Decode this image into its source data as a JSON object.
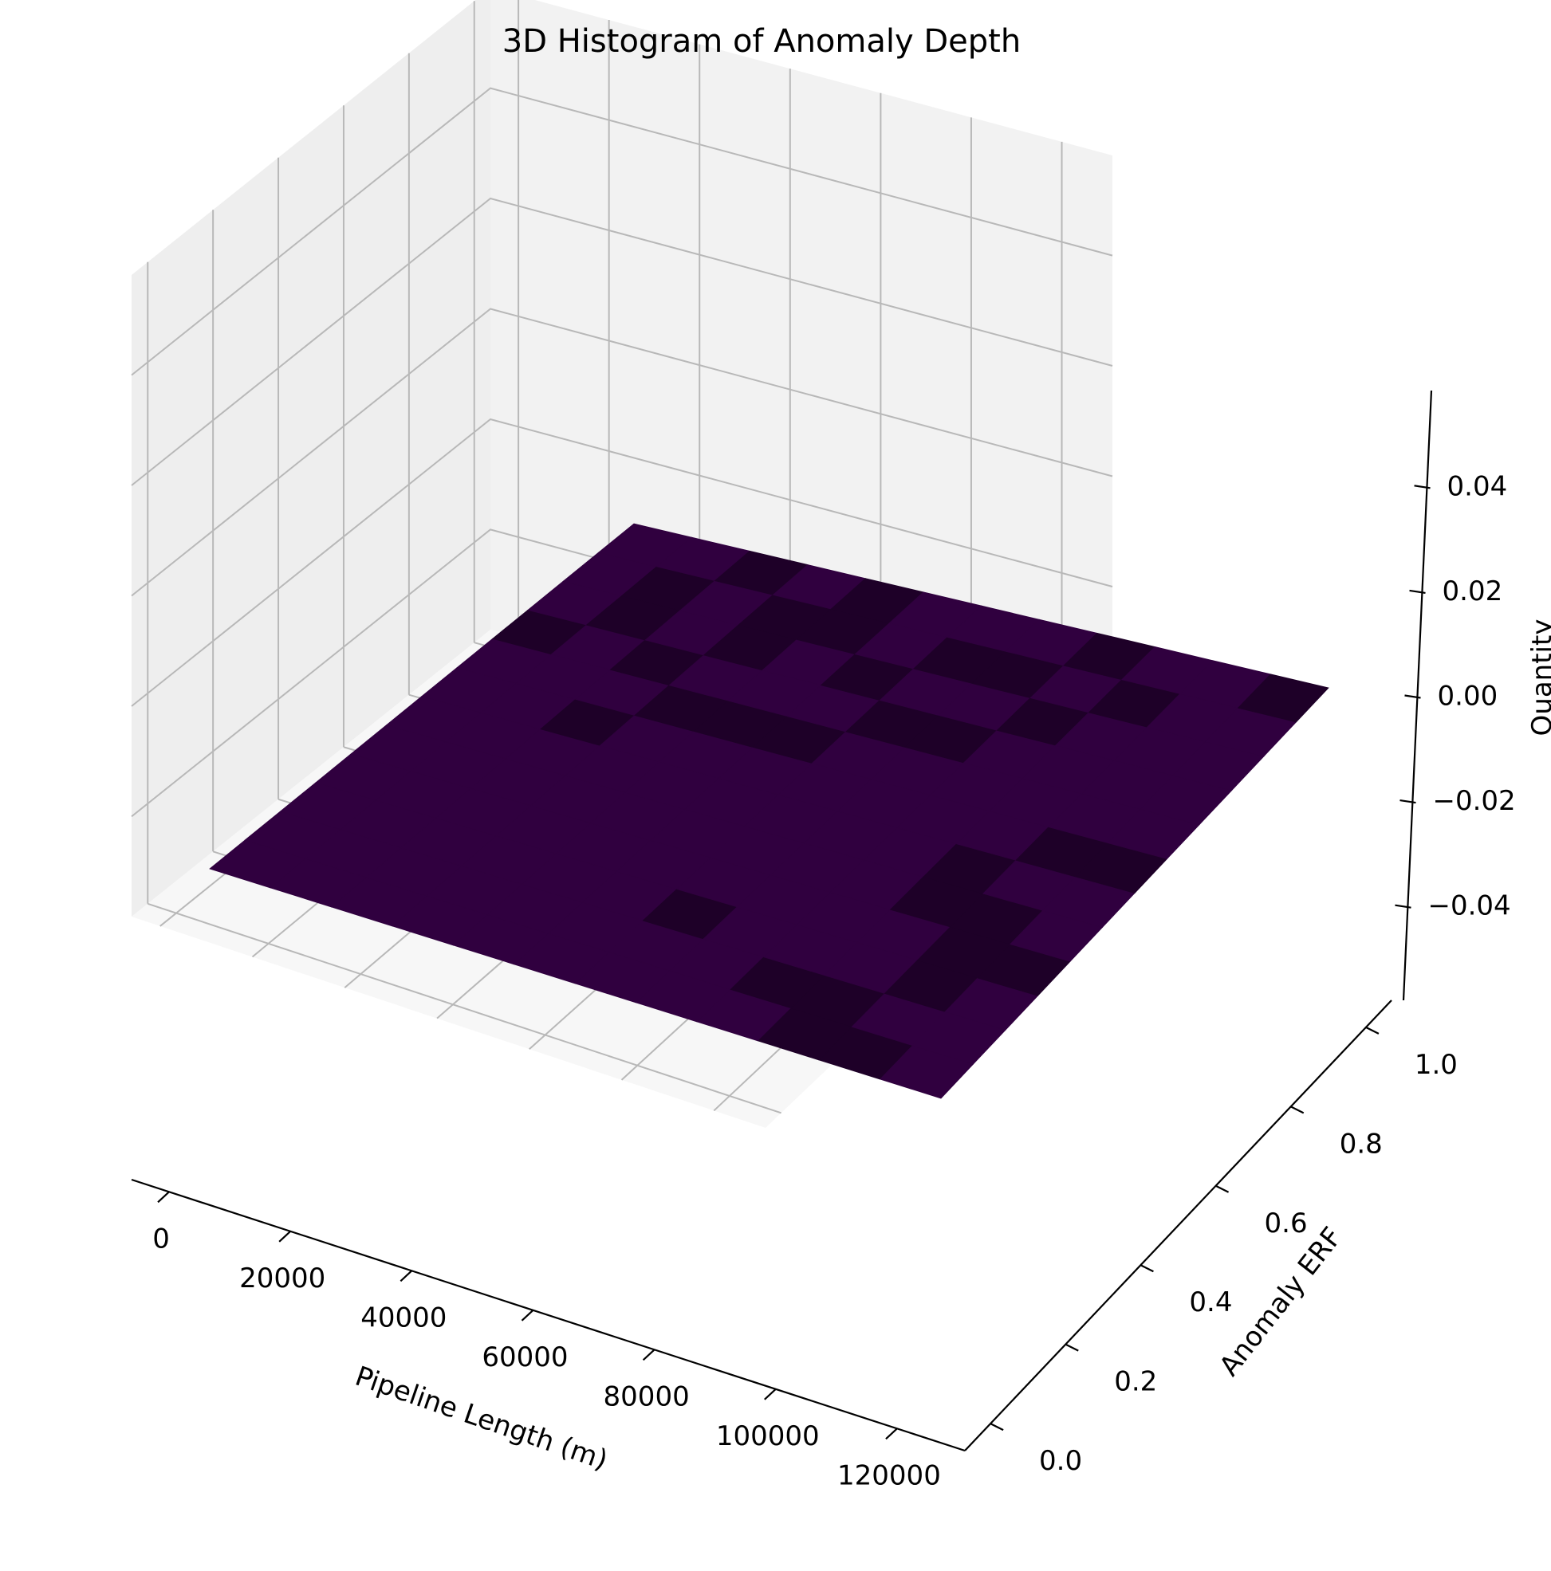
{
  "chart_data": {
    "type": "bar3d",
    "title": "3D Histogram of Anomaly Depth",
    "xlabel": "Pipeline Length (m)",
    "ylabel": "Anomaly ERF",
    "zlabel": "Quantity",
    "xticks": [
      "0",
      "20000",
      "40000",
      "60000",
      "80000",
      "100000",
      "120000"
    ],
    "yticks": [
      "0.0",
      "0.2",
      "0.4",
      "0.6",
      "0.8",
      "1.0"
    ],
    "zticks": [
      "0.04",
      "0.02",
      "0.00",
      "−0.02",
      "−0.04"
    ],
    "xlim": [
      0,
      125000
    ],
    "ylim": [
      0,
      1.0
    ],
    "zlim": [
      -0.05,
      0.05
    ],
    "x_bins": 12,
    "y_bins": 12,
    "bar_height": 0.0,
    "grid": true,
    "colors": {
      "bar_face": "#30003f",
      "bar_dark": "#1e0028",
      "pane_left": "#eeeeee",
      "pane_back": "#f2f2f2",
      "pane_floor": "#f7f7f7",
      "grid": "#b8b8b8"
    }
  }
}
